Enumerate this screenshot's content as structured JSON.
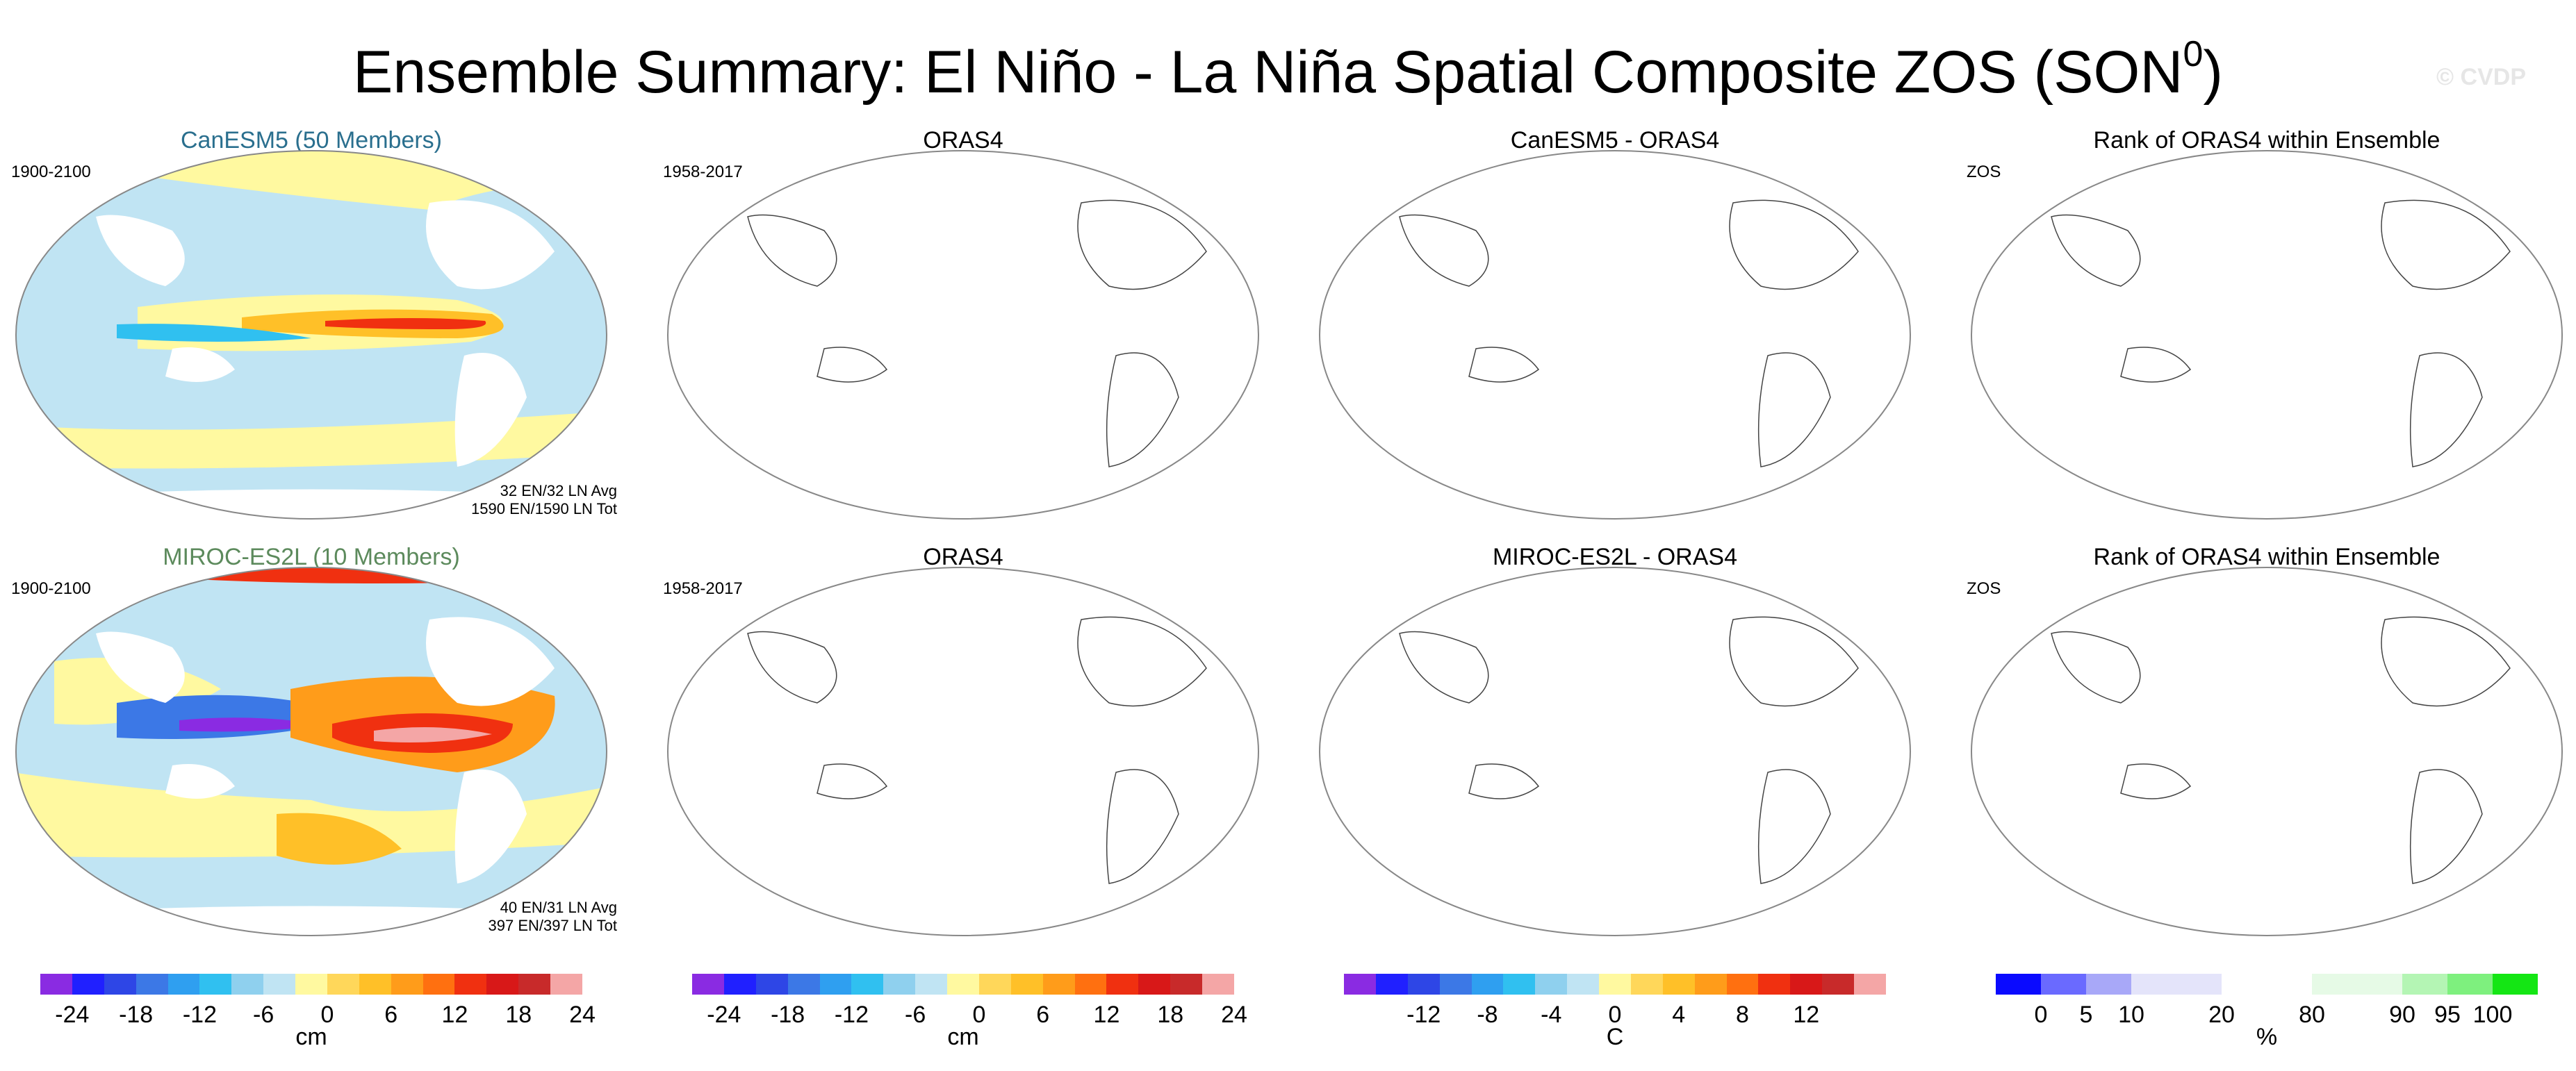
{
  "title": "Ensemble Summary: El Niño - La Niña Spatial Composite ZOS (SON",
  "title_sup": "0",
  "title_close": ")",
  "watermark": "© CVDP",
  "rows": [
    {
      "model": "CanESM5 (50 Members)",
      "model_color": "#2a6f8e",
      "period": "1900-2100",
      "avg": "32 EN/32 LN Avg",
      "tot": "1590 EN/1590 LN Tot",
      "obs_title": "ORAS4",
      "obs_period": "1958-2017",
      "diff_title": "CanESM5 - ORAS4",
      "rank_title": "Rank of ORAS4 within Ensemble",
      "rank_label": "ZOS"
    },
    {
      "model": "MIROC-ES2L (10 Members)",
      "model_color": "#5c8a5c",
      "period": "1900-2100",
      "avg": "40 EN/31 LN Avg",
      "tot": "397 EN/397 LN Tot",
      "obs_title": "ORAS4",
      "obs_period": "1958-2017",
      "diff_title": "MIROC-ES2L - ORAS4",
      "rank_title": "Rank of ORAS4 within Ensemble",
      "rank_label": "ZOS"
    }
  ],
  "colorbars": [
    {
      "ticks": [
        "-24",
        "-18",
        "-12",
        "-6",
        "0",
        "6",
        "12",
        "18",
        "24"
      ],
      "unit": "cm",
      "colors": [
        "#8a2be2",
        "#2020ff",
        "#2e46e6",
        "#3c78e6",
        "#2f9ff0",
        "#30c0f0",
        "#8fd0ee",
        "#c0e4f3",
        "#fff9a0",
        "#ffd75a",
        "#ffc028",
        "#ff9c1a",
        "#ff7010",
        "#f03010",
        "#d81818",
        "#c82a2a",
        "#f4a6a6"
      ]
    },
    {
      "ticks": [
        "-24",
        "-18",
        "-12",
        "-6",
        "0",
        "6",
        "12",
        "18",
        "24"
      ],
      "unit": "cm",
      "colors": [
        "#8a2be2",
        "#2020ff",
        "#2e46e6",
        "#3c78e6",
        "#2f9ff0",
        "#30c0f0",
        "#8fd0ee",
        "#c0e4f3",
        "#fff9a0",
        "#ffd75a",
        "#ffc028",
        "#ff9c1a",
        "#ff7010",
        "#f03010",
        "#d81818",
        "#c82a2a",
        "#f4a6a6"
      ]
    },
    {
      "ticks": [
        "-12",
        "-8",
        "-4",
        "0",
        "4",
        "8",
        "12"
      ],
      "unit": "C",
      "colors": [
        "#8a2be2",
        "#2020ff",
        "#2e46e6",
        "#3c78e6",
        "#2f9ff0",
        "#30c0f0",
        "#8fd0ee",
        "#c0e4f3",
        "#fff9a0",
        "#ffd75a",
        "#ffc028",
        "#ff9c1a",
        "#ff7010",
        "#f03010",
        "#d81818",
        "#c82a2a",
        "#f4a6a6"
      ]
    },
    {
      "ticks": [
        "0",
        "5",
        "10",
        "20",
        "80",
        "90",
        "95",
        "100"
      ],
      "unit": "%",
      "colors": [
        "#0a0aff",
        "#6a6aff",
        "#a8a8f8",
        "#e4e4fa",
        "#e4e4fa",
        "#ffffff",
        "#ffffff",
        "#e6fae6",
        "#e6fae6",
        "#b4f5b4",
        "#7ef07e",
        "#14e614"
      ]
    }
  ]
}
